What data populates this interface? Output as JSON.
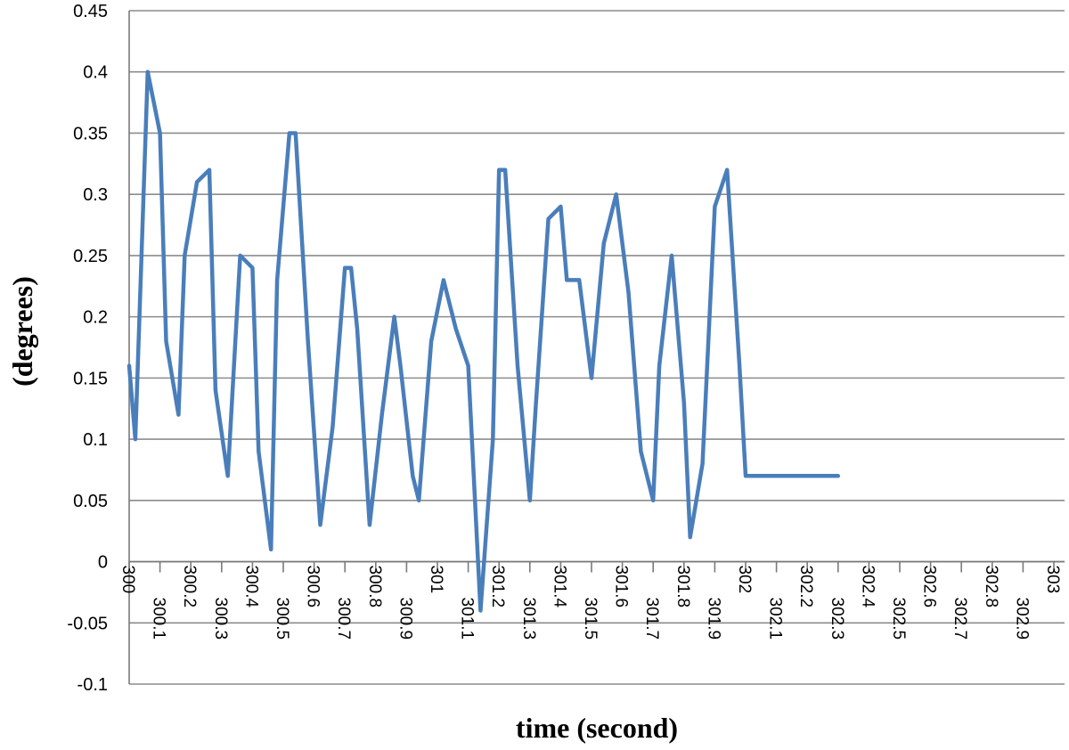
{
  "chart_data": {
    "type": "line",
    "title": "",
    "xlabel": "time (second)",
    "ylabel": "(degrees)",
    "xlim": [
      300,
      303
    ],
    "ylim": [
      -0.1,
      0.45
    ],
    "y_ticks": [
      "-0.1",
      "-0.05",
      "0",
      "0.05",
      "0.1",
      "0.15",
      "0.2",
      "0.25",
      "0.3",
      "0.35",
      "0.4",
      "0.45"
    ],
    "x_ticks": [
      "300",
      "300.1",
      "300.2",
      "300.3",
      "300.4",
      "300.5",
      "300.6",
      "300.7",
      "300.8",
      "300.9",
      "301",
      "301.1",
      "301.2",
      "301.3",
      "301.4",
      "301.5",
      "301.6",
      "301.7",
      "301.8",
      "301.9",
      "302",
      "302.1",
      "302.2",
      "302.3",
      "302.4",
      "302.5",
      "302.6",
      "302.7",
      "302.8",
      "302.9",
      "303"
    ],
    "grid": true,
    "line_color": "#4a7ebb",
    "series": [
      {
        "x": [
          300.0,
          300.02,
          300.06,
          300.1,
          300.12,
          300.16,
          300.18,
          300.22,
          300.26,
          300.28,
          300.32,
          300.36,
          300.4,
          300.42,
          300.46,
          300.48,
          300.52,
          300.54,
          300.58,
          300.62,
          300.66,
          300.7,
          300.72,
          300.74,
          300.78,
          300.82,
          300.86,
          300.88,
          300.92,
          300.94,
          300.98,
          301.02,
          301.06,
          301.1,
          301.14,
          301.18,
          301.2,
          301.22,
          301.26,
          301.3,
          301.32,
          301.36,
          301.4,
          301.42,
          301.46,
          301.5,
          301.54,
          301.58,
          301.62,
          301.66,
          301.7,
          301.72,
          301.76,
          301.8,
          301.82,
          301.86,
          301.9,
          301.94,
          301.98,
          302.0,
          302.04,
          302.06,
          302.1,
          302.14,
          302.18,
          302.2,
          302.24,
          302.28,
          302.3
        ],
        "y": [
          0.16,
          0.1,
          0.4,
          0.35,
          0.18,
          0.12,
          0.25,
          0.31,
          0.32,
          0.14,
          0.07,
          0.25,
          0.24,
          0.09,
          0.01,
          0.23,
          0.35,
          0.35,
          0.18,
          0.03,
          0.11,
          0.24,
          0.24,
          0.19,
          0.03,
          0.12,
          0.2,
          0.16,
          0.07,
          0.05,
          0.18,
          0.23,
          0.19,
          0.16,
          -0.04,
          0.1,
          0.32,
          0.32,
          0.16,
          0.05,
          0.13,
          0.28,
          0.29,
          0.23,
          0.23,
          0.15,
          0.26,
          0.3,
          0.22,
          0.09,
          0.05,
          0.16,
          0.25,
          0.13,
          0.02,
          0.08,
          0.29,
          0.32,
          0.16,
          0.07,
          0.07,
          0.07,
          0.07,
          0.07,
          0.07,
          0.07,
          0.07,
          0.07,
          0.07
        ]
      }
    ]
  }
}
